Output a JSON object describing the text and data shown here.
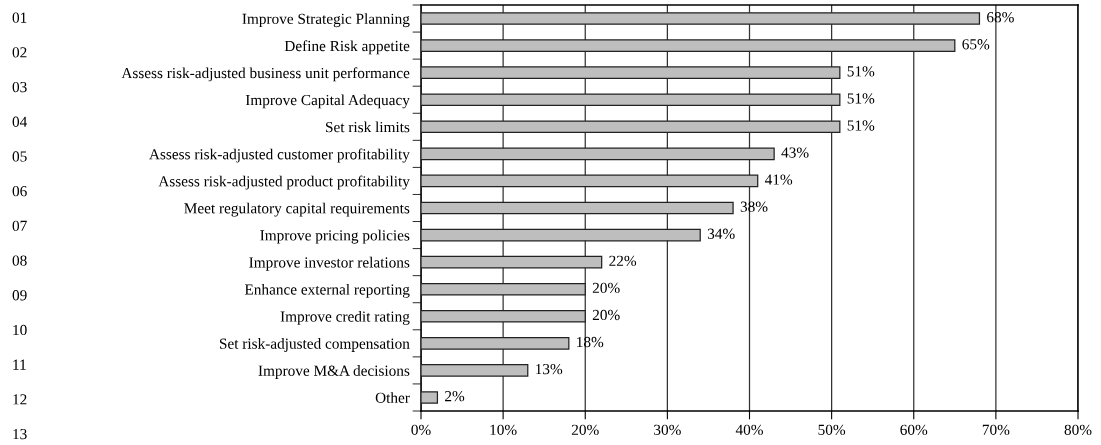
{
  "chart_data": {
    "type": "bar",
    "orientation": "horizontal",
    "categories": [
      "Improve Strategic Planning",
      "Define Risk appetite",
      "Assess risk-adjusted business unit performance",
      "Improve Capital Adequacy",
      "Set risk limits",
      "Assess risk-adjusted customer profitability",
      "Assess risk-adjusted product profitability",
      "Meet regulatory capital requirements",
      "Improve pricing policies",
      "Improve investor relations",
      "Enhance external reporting",
      "Improve credit rating",
      "Set risk-adjusted compensation",
      "Improve M&A decisions",
      "Other"
    ],
    "values": [
      68,
      65,
      51,
      51,
      51,
      43,
      41,
      38,
      34,
      22,
      20,
      20,
      18,
      13,
      2
    ],
    "value_labels": [
      "68%",
      "65%",
      "51%",
      "51%",
      "51%",
      "43%",
      "41%",
      "38%",
      "34%",
      "22%",
      "20%",
      "20%",
      "18%",
      "13%",
      "2%"
    ],
    "color": "#bebebe",
    "xlim": [
      0,
      80
    ],
    "xticks": [
      {
        "value": 0,
        "label": "0%"
      },
      {
        "value": 10,
        "label": "10%"
      },
      {
        "value": 20,
        "label": "20%"
      },
      {
        "value": 30,
        "label": "30%"
      },
      {
        "value": 40,
        "label": "40%"
      },
      {
        "value": 50,
        "label": "50%"
      },
      {
        "value": 60,
        "label": "60%"
      },
      {
        "value": 70,
        "label": "70%"
      },
      {
        "value": 80,
        "label": "80%"
      }
    ],
    "grid": "x",
    "annotations": [
      "01",
      "02",
      "03",
      "04",
      "05",
      "06",
      "07",
      "08",
      "09",
      "10",
      "11",
      "12",
      "13"
    ]
  }
}
